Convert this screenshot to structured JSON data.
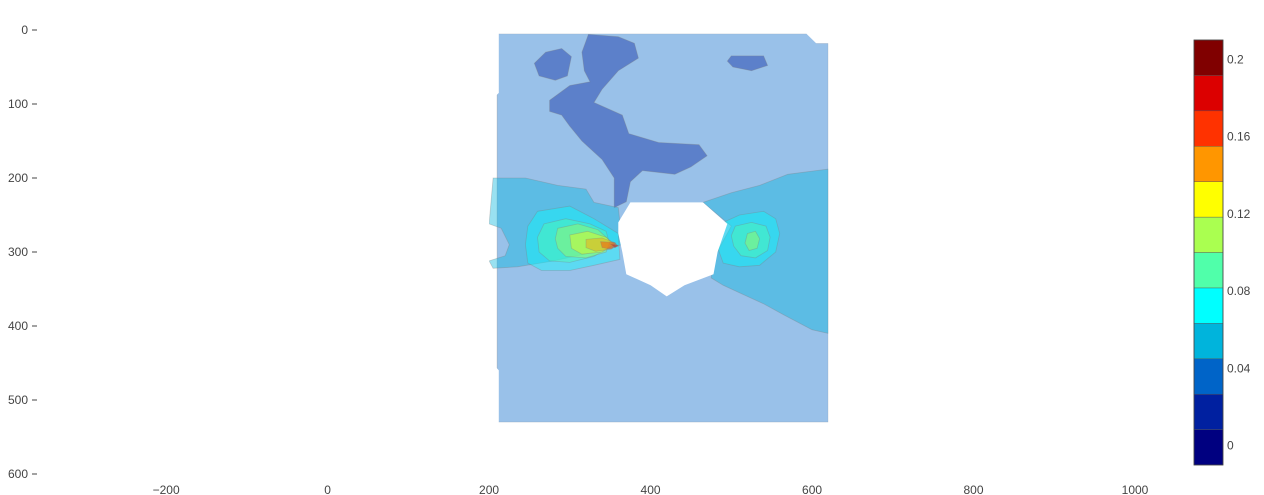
{
  "chart_data": {
    "type": "heatmap",
    "subtype": "filled-contour",
    "title": "",
    "xlabel": "",
    "ylabel": "",
    "xlim": [
      -350,
      1000
    ],
    "ylim": [
      600,
      0
    ],
    "y_reversed": true,
    "grid": false,
    "x_ticks": [
      -200,
      0,
      200,
      400,
      600,
      800,
      1000
    ],
    "x_tick_labels": [
      "−200",
      "0",
      "200",
      "400",
      "600",
      "800",
      "1000"
    ],
    "y_ticks": [
      0,
      100,
      200,
      300,
      400,
      500,
      600
    ],
    "y_tick_labels": [
      "0",
      "100",
      "200",
      "300",
      "400",
      "500",
      "600"
    ],
    "domain_outline": [
      [
        212,
        5
      ],
      [
        593,
        5
      ],
      [
        605,
        18
      ],
      [
        620,
        18
      ],
      [
        620,
        530
      ],
      [
        212,
        530
      ],
      [
        212,
        460
      ],
      [
        200,
        445
      ],
      [
        200,
        98
      ],
      [
        212,
        85
      ]
    ],
    "hole_outline": [
      [
        375,
        233
      ],
      [
        465,
        233
      ],
      [
        495,
        262
      ],
      [
        483,
        300
      ],
      [
        478,
        330
      ],
      [
        442,
        345
      ],
      [
        420,
        360
      ],
      [
        400,
        345
      ],
      [
        370,
        330
      ],
      [
        365,
        300
      ],
      [
        360,
        275
      ],
      [
        360,
        260
      ]
    ],
    "contour_fill_opacity": 0.4,
    "contour_regions": [
      {
        "level": 0.02,
        "color": "#0064c8",
        "points": [
          [
            210,
            5
          ],
          [
            594,
            5
          ],
          [
            606,
            18
          ],
          [
            620,
            18
          ],
          [
            620,
            530
          ],
          [
            210,
            530
          ]
        ]
      },
      {
        "level": 0.01,
        "color": "#001f9a",
        "points": [
          [
            323,
            6
          ],
          [
            360,
            9
          ],
          [
            380,
            18
          ],
          [
            385,
            38
          ],
          [
            360,
            55
          ],
          [
            340,
            80
          ],
          [
            330,
            98
          ],
          [
            365,
            115
          ],
          [
            373,
            140
          ],
          [
            410,
            152
          ],
          [
            460,
            155
          ],
          [
            470,
            170
          ],
          [
            450,
            185
          ],
          [
            430,
            195
          ],
          [
            390,
            190
          ],
          [
            375,
            205
          ],
          [
            370,
            232
          ],
          [
            355,
            240
          ],
          [
            355,
            200
          ],
          [
            340,
            175
          ],
          [
            330,
            165
          ],
          [
            315,
            150
          ],
          [
            300,
            130
          ],
          [
            290,
            115
          ],
          [
            275,
            110
          ],
          [
            275,
            95
          ],
          [
            300,
            75
          ],
          [
            325,
            70
          ],
          [
            318,
            55
          ],
          [
            315,
            30
          ]
        ]
      },
      {
        "level": 0.01,
        "color": "#001f9a",
        "points": [
          [
            270,
            30
          ],
          [
            290,
            25
          ],
          [
            302,
            36
          ],
          [
            297,
            62
          ],
          [
            282,
            68
          ],
          [
            262,
            62
          ],
          [
            256,
            45
          ]
        ]
      },
      {
        "level": 0.01,
        "color": "#001f9a",
        "points": [
          [
            500,
            35
          ],
          [
            540,
            35
          ],
          [
            545,
            48
          ],
          [
            525,
            55
          ],
          [
            502,
            50
          ],
          [
            495,
            42
          ]
        ]
      },
      {
        "level": 0.04,
        "color": "#00b4dc",
        "points": [
          [
            205,
            200
          ],
          [
            245,
            200
          ],
          [
            285,
            210
          ],
          [
            320,
            215
          ],
          [
            330,
            233
          ],
          [
            360,
            240
          ],
          [
            365,
            290
          ],
          [
            330,
            300
          ],
          [
            280,
            312
          ],
          [
            235,
            320
          ],
          [
            205,
            322
          ],
          [
            200,
            312
          ],
          [
            220,
            305
          ],
          [
            225,
            290
          ],
          [
            215,
            268
          ],
          [
            200,
            262
          ]
        ]
      },
      {
        "level": 0.04,
        "color": "#00b4dc",
        "points": [
          [
            465,
            233
          ],
          [
            500,
            220
          ],
          [
            535,
            210
          ],
          [
            570,
            195
          ],
          [
            605,
            190
          ],
          [
            620,
            188
          ],
          [
            620,
            410
          ],
          [
            600,
            405
          ],
          [
            565,
            385
          ],
          [
            540,
            370
          ],
          [
            510,
            355
          ],
          [
            490,
            345
          ],
          [
            475,
            335
          ],
          [
            480,
            305
          ],
          [
            500,
            265
          ]
        ]
      },
      {
        "level": 0.06,
        "color": "#00ffff",
        "points": [
          [
            260,
            245
          ],
          [
            300,
            238
          ],
          [
            330,
            255
          ],
          [
            360,
            275
          ],
          [
            362,
            310
          ],
          [
            330,
            318
          ],
          [
            300,
            325
          ],
          [
            265,
            325
          ],
          [
            248,
            315
          ],
          [
            245,
            290
          ],
          [
            248,
            265
          ]
        ]
      },
      {
        "level": 0.06,
        "color": "#00ffff",
        "points": [
          [
            490,
            260
          ],
          [
            510,
            250
          ],
          [
            540,
            245
          ],
          [
            555,
            255
          ],
          [
            560,
            275
          ],
          [
            555,
            300
          ],
          [
            535,
            318
          ],
          [
            510,
            320
          ],
          [
            490,
            315
          ],
          [
            485,
            300
          ],
          [
            480,
            280
          ]
        ]
      },
      {
        "level": 0.08,
        "color": "#50ffaa",
        "points": [
          [
            268,
            262
          ],
          [
            295,
            255
          ],
          [
            325,
            262
          ],
          [
            345,
            272
          ],
          [
            350,
            292
          ],
          [
            330,
            306
          ],
          [
            300,
            314
          ],
          [
            275,
            312
          ],
          [
            262,
            300
          ],
          [
            260,
            280
          ]
        ]
      },
      {
        "level": 0.08,
        "color": "#50ffaa",
        "points": [
          [
            505,
            265
          ],
          [
            525,
            260
          ],
          [
            543,
            265
          ],
          [
            548,
            280
          ],
          [
            545,
            298
          ],
          [
            530,
            308
          ],
          [
            512,
            305
          ],
          [
            503,
            292
          ],
          [
            500,
            278
          ]
        ]
      },
      {
        "level": 0.1,
        "color": "#aaff50",
        "points": [
          [
            285,
            268
          ],
          [
            310,
            262
          ],
          [
            335,
            270
          ],
          [
            350,
            285
          ],
          [
            345,
            300
          ],
          [
            320,
            308
          ],
          [
            295,
            306
          ],
          [
            285,
            295
          ],
          [
            282,
            282
          ]
        ]
      },
      {
        "level": 0.1,
        "color": "#aaff50",
        "points": [
          [
            520,
            275
          ],
          [
            530,
            272
          ],
          [
            535,
            282
          ],
          [
            532,
            295
          ],
          [
            522,
            298
          ],
          [
            517,
            288
          ]
        ]
      },
      {
        "level": 0.12,
        "color": "#ffff00",
        "points": [
          [
            300,
            277
          ],
          [
            322,
            272
          ],
          [
            345,
            280
          ],
          [
            355,
            290
          ],
          [
            340,
            300
          ],
          [
            315,
            303
          ],
          [
            302,
            295
          ]
        ]
      },
      {
        "level": 0.14,
        "color": "#ff9600",
        "points": [
          [
            320,
            283
          ],
          [
            340,
            281
          ],
          [
            357,
            288
          ],
          [
            352,
            296
          ],
          [
            332,
            299
          ],
          [
            320,
            294
          ]
        ]
      },
      {
        "level": 0.16,
        "color": "#ff3200",
        "points": [
          [
            338,
            286
          ],
          [
            355,
            287
          ],
          [
            360,
            292
          ],
          [
            350,
            296
          ],
          [
            340,
            294
          ]
        ]
      },
      {
        "level": 0.18,
        "color": "#dc0000",
        "points": [
          [
            350,
            289
          ],
          [
            360,
            291
          ],
          [
            356,
            294
          ]
        ]
      }
    ],
    "colorscale_bins": [
      {
        "color": "#000080"
      },
      {
        "color": "#0020a0"
      },
      {
        "color": "#0064c8"
      },
      {
        "color": "#00b4dc"
      },
      {
        "color": "#00ffff"
      },
      {
        "color": "#50ffaa"
      },
      {
        "color": "#aaff50"
      },
      {
        "color": "#ffff00"
      },
      {
        "color": "#ff9600"
      },
      {
        "color": "#ff3200"
      },
      {
        "color": "#dc0000"
      },
      {
        "color": "#800000"
      }
    ],
    "colorbar": {
      "range": [
        -0.01,
        0.21
      ],
      "ticks": [
        0,
        0.04,
        0.08,
        0.12,
        0.16,
        0.2
      ],
      "tick_labels": [
        "0",
        "0.04",
        "0.08",
        "0.12",
        "0.16",
        "0.2"
      ],
      "placement": "right"
    }
  }
}
